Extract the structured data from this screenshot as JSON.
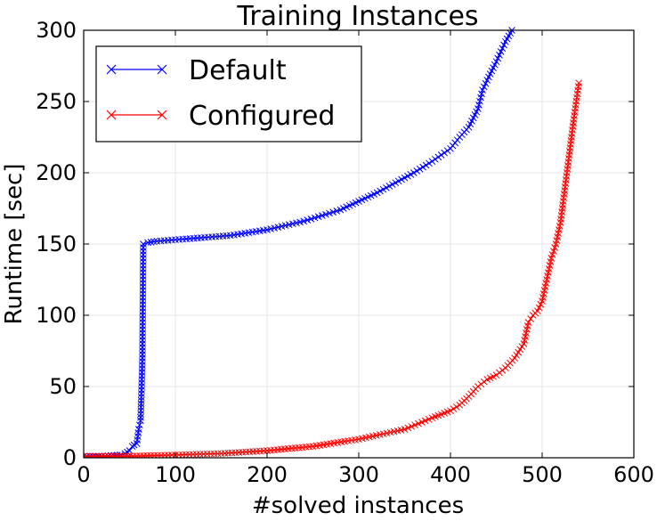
{
  "chart_data": {
    "type": "line",
    "title": "Training Instances",
    "xlabel": "#solved instances",
    "ylabel": "Runtime [sec]",
    "xlim": [
      0,
      600
    ],
    "ylim": [
      0,
      300
    ],
    "xticks": [
      0,
      100,
      200,
      300,
      400,
      500,
      600
    ],
    "yticks": [
      0,
      50,
      100,
      150,
      200,
      250,
      300
    ],
    "grid": true,
    "legend": "top-left",
    "marker": "x",
    "series": [
      {
        "name": "Default",
        "color": "#0000ff",
        "points": [
          [
            0,
            1
          ],
          [
            10,
            1
          ],
          [
            20,
            1
          ],
          [
            30,
            1.5
          ],
          [
            40,
            2
          ],
          [
            45,
            3
          ],
          [
            50,
            5
          ],
          [
            53,
            8
          ],
          [
            55,
            9
          ],
          [
            58,
            10
          ],
          [
            60,
            20
          ],
          [
            62,
            26
          ],
          [
            63,
            45
          ],
          [
            64,
            70
          ],
          [
            65,
            150
          ],
          [
            70,
            151
          ],
          [
            80,
            152
          ],
          [
            100,
            153
          ],
          [
            120,
            154
          ],
          [
            140,
            155
          ],
          [
            160,
            156
          ],
          [
            180,
            158
          ],
          [
            200,
            160
          ],
          [
            220,
            163
          ],
          [
            240,
            166
          ],
          [
            260,
            170
          ],
          [
            280,
            174
          ],
          [
            300,
            180
          ],
          [
            320,
            186
          ],
          [
            340,
            193
          ],
          [
            360,
            200
          ],
          [
            380,
            208
          ],
          [
            400,
            217
          ],
          [
            410,
            225
          ],
          [
            420,
            232
          ],
          [
            430,
            245
          ],
          [
            435,
            258
          ],
          [
            440,
            265
          ],
          [
            450,
            278
          ],
          [
            455,
            285
          ],
          [
            460,
            292
          ],
          [
            467,
            300
          ]
        ]
      },
      {
        "name": "Configured",
        "color": "#ff0000",
        "points": [
          [
            0,
            1
          ],
          [
            50,
            1
          ],
          [
            100,
            2
          ],
          [
            150,
            3
          ],
          [
            200,
            5
          ],
          [
            250,
            8
          ],
          [
            300,
            13
          ],
          [
            350,
            20
          ],
          [
            380,
            28
          ],
          [
            400,
            33
          ],
          [
            410,
            37
          ],
          [
            420,
            43
          ],
          [
            430,
            50
          ],
          [
            440,
            55
          ],
          [
            450,
            58
          ],
          [
            460,
            63
          ],
          [
            470,
            70
          ],
          [
            480,
            80
          ],
          [
            485,
            95
          ],
          [
            490,
            100
          ],
          [
            495,
            103
          ],
          [
            500,
            110
          ],
          [
            505,
            125
          ],
          [
            510,
            140
          ],
          [
            515,
            150
          ],
          [
            520,
            165
          ],
          [
            525,
            190
          ],
          [
            530,
            215
          ],
          [
            535,
            240
          ],
          [
            540,
            263
          ]
        ]
      }
    ]
  }
}
